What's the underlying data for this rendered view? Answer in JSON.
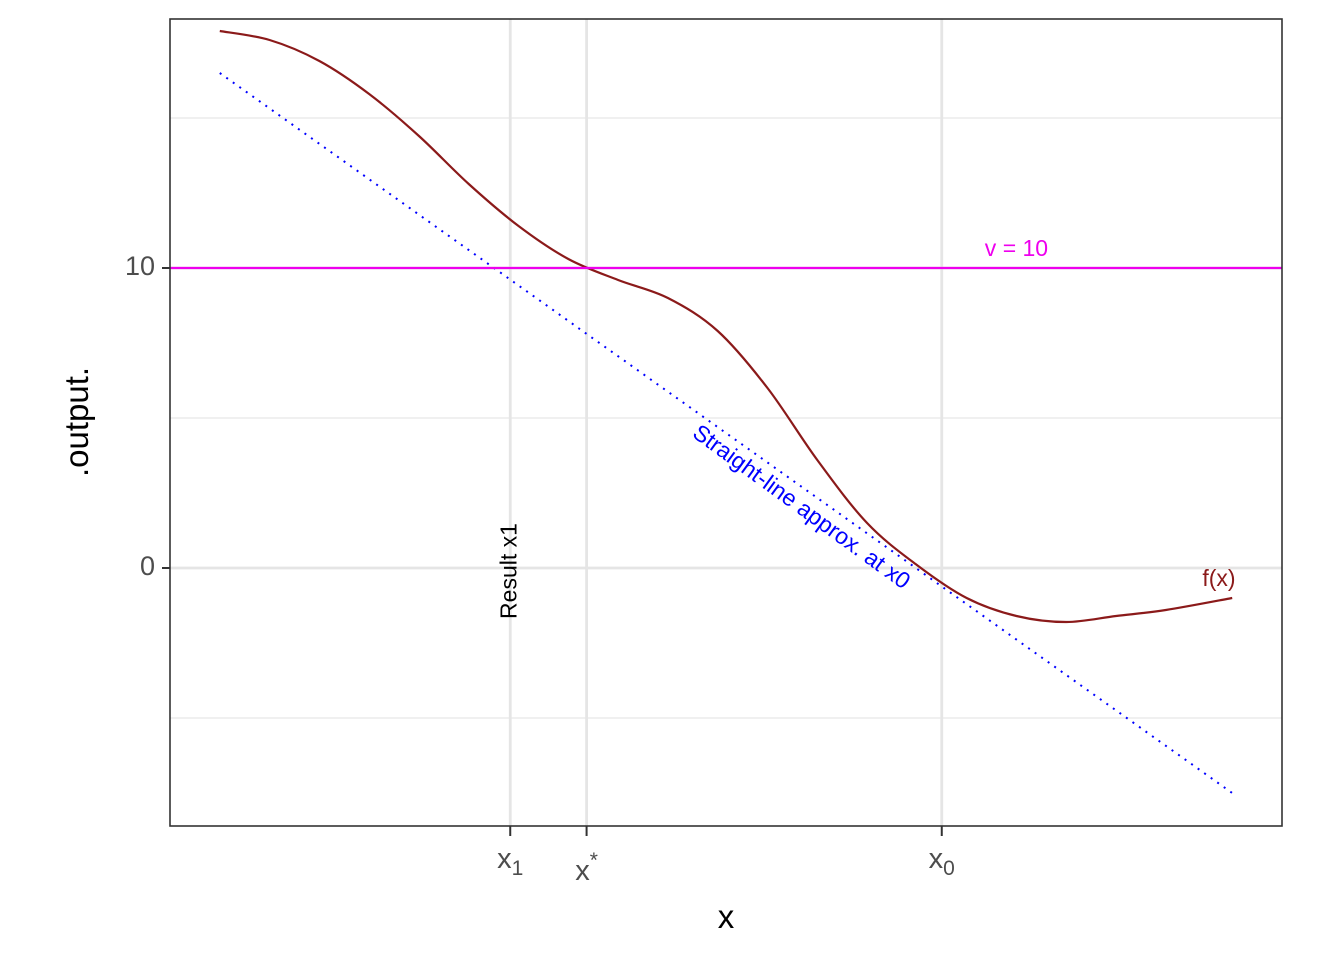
{
  "chart_data": {
    "type": "line",
    "title": "",
    "xlabel": "x",
    "ylabel": ".output.",
    "xlim": [
      -3.2,
      3.5
    ],
    "ylim": [
      -8.6,
      18.3
    ],
    "x_ticks": [
      {
        "x": -1.15,
        "main": "x",
        "sub": "1",
        "sup": ""
      },
      {
        "x": -0.69,
        "main": "x",
        "sub": "",
        "sup": "*"
      },
      {
        "x": 1.45,
        "main": "x",
        "sub": "0",
        "sup": ""
      }
    ],
    "y_ticks": [
      {
        "y": 0,
        "label": "0"
      },
      {
        "y": 10,
        "label": "10"
      }
    ],
    "y_minor_gridlines": [
      -5,
      5,
      15
    ],
    "grid": true,
    "series": [
      {
        "name": "f(x)",
        "color": "#8b1a1a",
        "style": "solid",
        "x": [
          -2.9,
          -2.6,
          -2.3,
          -2.0,
          -1.7,
          -1.4,
          -1.1,
          -0.8,
          -0.5,
          -0.2,
          0.1,
          0.4,
          0.7,
          1.0,
          1.3,
          1.6,
          1.9,
          2.2,
          2.5,
          2.8,
          3.2
        ],
        "y": [
          17.9,
          17.6,
          16.9,
          15.8,
          14.4,
          12.8,
          11.4,
          10.3,
          9.6,
          9.0,
          7.9,
          6.0,
          3.6,
          1.5,
          0.1,
          -1.0,
          -1.6,
          -1.8,
          -1.6,
          -1.4,
          -1.0
        ]
      },
      {
        "name": "Straight-line approx. at x0",
        "color": "#0000ff",
        "style": "dotted",
        "x": [
          -2.9,
          3.2
        ],
        "y": [
          16.5,
          -7.5
        ]
      },
      {
        "name": "v = 10",
        "color": "#ee00ee",
        "style": "solid",
        "x": [
          -3.2,
          3.5
        ],
        "y": [
          10,
          10
        ]
      }
    ],
    "annotations": [
      {
        "text": "v = 10",
        "x": 1.9,
        "y": 10.6,
        "color": "#ee00ee",
        "rotate": 0
      },
      {
        "text": "f(x)",
        "x": 3.12,
        "y": -0.4,
        "color": "#8b1a1a",
        "rotate": 0
      },
      {
        "text": "Straight-line approx. at x0",
        "x": 0.6,
        "y": 2.0,
        "color": "#0000ff",
        "rotate": 36
      },
      {
        "text": "Result x1",
        "x": -1.15,
        "y": -0.1,
        "color": "#000000",
        "rotate": -90
      }
    ]
  }
}
